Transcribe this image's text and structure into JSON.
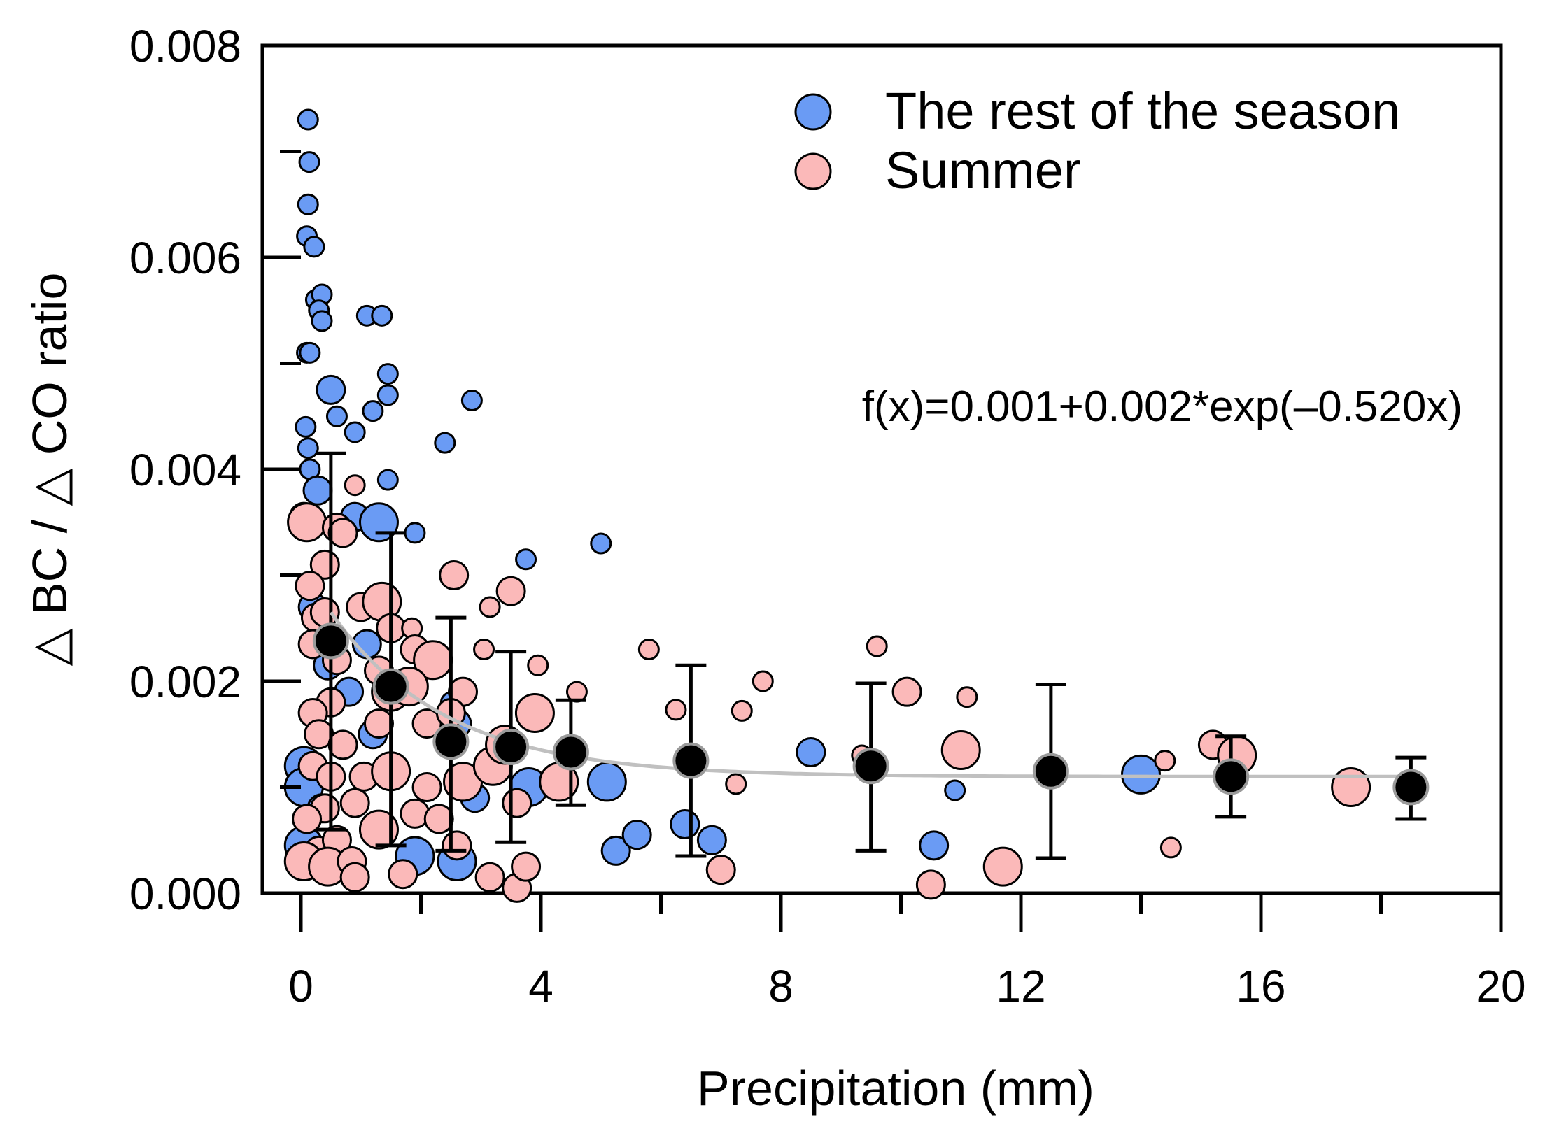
{
  "chart_data": {
    "type": "scatter",
    "xlabel": "Precipitation (mm)",
    "ylabel": "△ BC / △ CO ratio",
    "xlim": [
      0,
      20
    ],
    "ylim": [
      0,
      0.008
    ],
    "x_ticks": [
      0,
      4,
      8,
      12,
      16,
      20
    ],
    "x_tick_labels": [
      "0",
      "4",
      "8",
      "12",
      "16",
      "20"
    ],
    "y_ticks": [
      0,
      0.002,
      0.004,
      0.006,
      0.008
    ],
    "y_tick_labels": [
      "0.000",
      "0.002",
      "0.004",
      "0.006",
      "0.008"
    ],
    "legend_position": "top-right",
    "legend": [
      {
        "label": "The rest of the season",
        "color": "#6a9bf4"
      },
      {
        "label": "Summer",
        "color": "#fbb9b9"
      }
    ],
    "equation": "f(x)=0.001+0.002*exp(–0.520x)",
    "colors": {
      "rest": "#6a9bf4",
      "summer": "#fbb9b9",
      "mean": "#000000",
      "fit": "#c0c0c0"
    },
    "fit": {
      "a": 0.0011,
      "b": 0.00155,
      "k": 0.52,
      "x_range": [
        0.5,
        18.5
      ]
    },
    "series": [
      {
        "name": "The rest of the season",
        "color": "#6a9bf4",
        "points": [
          {
            "x": 0.12,
            "y": 0.0073,
            "s": 1
          },
          {
            "x": 0.14,
            "y": 0.0069,
            "s": 1
          },
          {
            "x": 0.12,
            "y": 0.0065,
            "s": 1
          },
          {
            "x": 0.1,
            "y": 0.0062,
            "s": 1
          },
          {
            "x": 0.22,
            "y": 0.0061,
            "s": 1
          },
          {
            "x": 0.25,
            "y": 0.0056,
            "s": 1
          },
          {
            "x": 0.35,
            "y": 0.00565,
            "s": 1
          },
          {
            "x": 0.3,
            "y": 0.0055,
            "s": 1
          },
          {
            "x": 0.35,
            "y": 0.0054,
            "s": 1
          },
          {
            "x": 0.1,
            "y": 0.0051,
            "s": 1
          },
          {
            "x": 0.15,
            "y": 0.0051,
            "s": 1
          },
          {
            "x": 1.1,
            "y": 0.00545,
            "s": 1
          },
          {
            "x": 1.35,
            "y": 0.00545,
            "s": 1
          },
          {
            "x": 1.45,
            "y": 0.0049,
            "s": 1
          },
          {
            "x": 1.45,
            "y": 0.0047,
            "s": 1
          },
          {
            "x": 1.2,
            "y": 0.00455,
            "s": 1
          },
          {
            "x": 0.5,
            "y": 0.00475,
            "s": 2
          },
          {
            "x": 0.6,
            "y": 0.0045,
            "s": 1
          },
          {
            "x": 0.9,
            "y": 0.00435,
            "s": 1
          },
          {
            "x": 0.08,
            "y": 0.0044,
            "s": 1
          },
          {
            "x": 0.12,
            "y": 0.0042,
            "s": 1
          },
          {
            "x": 0.15,
            "y": 0.004,
            "s": 1
          },
          {
            "x": 1.45,
            "y": 0.0039,
            "s": 1
          },
          {
            "x": 0.28,
            "y": 0.0038,
            "s": 2
          },
          {
            "x": 0.9,
            "y": 0.00355,
            "s": 2
          },
          {
            "x": 1.3,
            "y": 0.0035,
            "s": 3
          },
          {
            "x": 1.9,
            "y": 0.0034,
            "s": 1
          },
          {
            "x": 2.4,
            "y": 0.00425,
            "s": 1
          },
          {
            "x": 2.85,
            "y": 0.00465,
            "s": 1
          },
          {
            "x": 3.75,
            "y": 0.00315,
            "s": 1
          },
          {
            "x": 5.0,
            "y": 0.0033,
            "s": 1
          },
          {
            "x": 0.2,
            "y": 0.0027,
            "s": 2
          },
          {
            "x": 0.45,
            "y": 0.00215,
            "s": 2
          },
          {
            "x": 1.1,
            "y": 0.00235,
            "s": 2
          },
          {
            "x": 0.8,
            "y": 0.0019,
            "s": 2
          },
          {
            "x": 1.2,
            "y": 0.0015,
            "s": 2
          },
          {
            "x": 0.05,
            "y": 0.0012,
            "s": 3
          },
          {
            "x": 0.05,
            "y": 0.001,
            "s": 3
          },
          {
            "x": 0.35,
            "y": 0.0008,
            "s": 2
          },
          {
            "x": 2.5,
            "y": 0.0018,
            "s": 1
          },
          {
            "x": 2.6,
            "y": 0.0016,
            "s": 2
          },
          {
            "x": 2.9,
            "y": 0.0009,
            "s": 2
          },
          {
            "x": 3.8,
            "y": 0.001,
            "s": 3
          },
          {
            "x": 5.1,
            "y": 0.00105,
            "s": 3
          },
          {
            "x": 5.25,
            "y": 0.0004,
            "s": 2
          },
          {
            "x": 5.6,
            "y": 0.00055,
            "s": 2
          },
          {
            "x": 6.4,
            "y": 0.00065,
            "s": 2
          },
          {
            "x": 6.85,
            "y": 0.0005,
            "s": 2
          },
          {
            "x": 0.05,
            "y": 0.00045,
            "s": 3
          },
          {
            "x": 1.9,
            "y": 0.00035,
            "s": 3
          },
          {
            "x": 2.6,
            "y": 0.0003,
            "s": 3
          },
          {
            "x": 8.5,
            "y": 0.00133,
            "s": 2
          },
          {
            "x": 10.9,
            "y": 0.00097,
            "s": 1
          },
          {
            "x": 10.55,
            "y": 0.00045,
            "s": 2
          },
          {
            "x": 14.0,
            "y": 0.00112,
            "s": 3
          }
        ]
      },
      {
        "name": "Summer",
        "color": "#fbb9b9",
        "points": [
          {
            "x": 0.05,
            "y": 0.00355,
            "s": 2
          },
          {
            "x": 0.1,
            "y": 0.0035,
            "s": 3
          },
          {
            "x": 0.6,
            "y": 0.00345,
            "s": 2
          },
          {
            "x": 0.7,
            "y": 0.0034,
            "s": 2
          },
          {
            "x": 0.9,
            "y": 0.00385,
            "s": 1
          },
          {
            "x": 0.4,
            "y": 0.0031,
            "s": 2
          },
          {
            "x": 0.15,
            "y": 0.0029,
            "s": 2
          },
          {
            "x": 0.25,
            "y": 0.0026,
            "s": 2
          },
          {
            "x": 0.4,
            "y": 0.00265,
            "s": 2
          },
          {
            "x": 1.0,
            "y": 0.0027,
            "s": 2
          },
          {
            "x": 1.35,
            "y": 0.00275,
            "s": 3
          },
          {
            "x": 1.5,
            "y": 0.0025,
            "s": 2
          },
          {
            "x": 1.85,
            "y": 0.0025,
            "s": 1
          },
          {
            "x": 0.2,
            "y": 0.00235,
            "s": 2
          },
          {
            "x": 0.6,
            "y": 0.0022,
            "s": 2
          },
          {
            "x": 1.3,
            "y": 0.0021,
            "s": 2
          },
          {
            "x": 1.9,
            "y": 0.0023,
            "s": 2
          },
          {
            "x": 2.2,
            "y": 0.0022,
            "s": 3
          },
          {
            "x": 1.5,
            "y": 0.0019,
            "s": 3
          },
          {
            "x": 1.8,
            "y": 0.00195,
            "s": 3
          },
          {
            "x": 0.5,
            "y": 0.0018,
            "s": 2
          },
          {
            "x": 0.2,
            "y": 0.0017,
            "s": 2
          },
          {
            "x": 1.3,
            "y": 0.0016,
            "s": 2
          },
          {
            "x": 2.1,
            "y": 0.0016,
            "s": 2
          },
          {
            "x": 2.7,
            "y": 0.0019,
            "s": 2
          },
          {
            "x": 2.5,
            "y": 0.0017,
            "s": 2
          },
          {
            "x": 3.05,
            "y": 0.0023,
            "s": 1
          },
          {
            "x": 3.15,
            "y": 0.0027,
            "s": 1
          },
          {
            "x": 2.55,
            "y": 0.003,
            "s": 2
          },
          {
            "x": 3.5,
            "y": 0.00285,
            "s": 2
          },
          {
            "x": 3.95,
            "y": 0.00215,
            "s": 1
          },
          {
            "x": 3.9,
            "y": 0.0017,
            "s": 3
          },
          {
            "x": 4.6,
            "y": 0.0019,
            "s": 1
          },
          {
            "x": 0.3,
            "y": 0.0015,
            "s": 2
          },
          {
            "x": 0.7,
            "y": 0.0014,
            "s": 2
          },
          {
            "x": 0.2,
            "y": 0.0012,
            "s": 2
          },
          {
            "x": 0.5,
            "y": 0.0011,
            "s": 2
          },
          {
            "x": 1.05,
            "y": 0.0011,
            "s": 2
          },
          {
            "x": 1.5,
            "y": 0.00115,
            "s": 3
          },
          {
            "x": 2.1,
            "y": 0.001,
            "s": 2
          },
          {
            "x": 2.7,
            "y": 0.00105,
            "s": 3
          },
          {
            "x": 3.2,
            "y": 0.0012,
            "s": 3
          },
          {
            "x": 3.4,
            "y": 0.0014,
            "s": 3
          },
          {
            "x": 4.3,
            "y": 0.00105,
            "s": 3
          },
          {
            "x": 3.6,
            "y": 0.00085,
            "s": 2
          },
          {
            "x": 0.4,
            "y": 0.0008,
            "s": 2
          },
          {
            "x": 0.9,
            "y": 0.00085,
            "s": 2
          },
          {
            "x": 1.3,
            "y": 0.0006,
            "s": 3
          },
          {
            "x": 1.9,
            "y": 0.00075,
            "s": 2
          },
          {
            "x": 2.3,
            "y": 0.0007,
            "s": 2
          },
          {
            "x": 0.1,
            "y": 0.0007,
            "s": 2
          },
          {
            "x": 0.3,
            "y": 0.0004,
            "s": 2
          },
          {
            "x": 0.6,
            "y": 0.0005,
            "s": 2
          },
          {
            "x": 0.05,
            "y": 0.0003,
            "s": 3
          },
          {
            "x": 0.45,
            "y": 0.00025,
            "s": 3
          },
          {
            "x": 0.85,
            "y": 0.0003,
            "s": 2
          },
          {
            "x": 0.9,
            "y": 0.00015,
            "s": 2
          },
          {
            "x": 1.7,
            "y": 0.00018,
            "s": 2
          },
          {
            "x": 2.6,
            "y": 0.00045,
            "s": 2
          },
          {
            "x": 3.15,
            "y": 0.00015,
            "s": 2
          },
          {
            "x": 3.6,
            "y": 5e-05,
            "s": 2
          },
          {
            "x": 3.75,
            "y": 0.00025,
            "s": 2
          },
          {
            "x": 5.8,
            "y": 0.0023,
            "s": 1
          },
          {
            "x": 6.25,
            "y": 0.00173,
            "s": 1
          },
          {
            "x": 7.35,
            "y": 0.00172,
            "s": 1
          },
          {
            "x": 7.7,
            "y": 0.002,
            "s": 1
          },
          {
            "x": 7.25,
            "y": 0.00103,
            "s": 1
          },
          {
            "x": 7.0,
            "y": 0.00022,
            "s": 2
          },
          {
            "x": 9.35,
            "y": 0.0013,
            "s": 1
          },
          {
            "x": 9.6,
            "y": 0.00233,
            "s": 1
          },
          {
            "x": 10.1,
            "y": 0.0019,
            "s": 2
          },
          {
            "x": 10.5,
            "y": 8e-05,
            "s": 2
          },
          {
            "x": 11.0,
            "y": 0.00135,
            "s": 3
          },
          {
            "x": 11.1,
            "y": 0.00185,
            "s": 1
          },
          {
            "x": 11.7,
            "y": 0.00025,
            "s": 3
          },
          {
            "x": 14.4,
            "y": 0.00125,
            "s": 1
          },
          {
            "x": 14.5,
            "y": 0.00043,
            "s": 1
          },
          {
            "x": 15.2,
            "y": 0.0014,
            "s": 2
          },
          {
            "x": 15.6,
            "y": 0.0013,
            "s": 3
          },
          {
            "x": 17.5,
            "y": 0.001,
            "s": 3
          }
        ]
      },
      {
        "name": "Binned mean",
        "color": "#000000",
        "points": [
          {
            "x": 0.5,
            "y": 0.00238,
            "lo": 0.0006,
            "hi": 0.00415
          },
          {
            "x": 1.5,
            "y": 0.00195,
            "lo": 0.00045,
            "hi": 0.0034
          },
          {
            "x": 2.5,
            "y": 0.00143,
            "lo": 0.0004,
            "hi": 0.0026
          },
          {
            "x": 3.5,
            "y": 0.00138,
            "lo": 0.00048,
            "hi": 0.00228
          },
          {
            "x": 4.5,
            "y": 0.00133,
            "lo": 0.00083,
            "hi": 0.00182
          },
          {
            "x": 6.5,
            "y": 0.00125,
            "lo": 0.00035,
            "hi": 0.00215
          },
          {
            "x": 9.5,
            "y": 0.0012,
            "lo": 0.0004,
            "hi": 0.00198
          },
          {
            "x": 12.5,
            "y": 0.00115,
            "lo": 0.00033,
            "hi": 0.00197
          },
          {
            "x": 15.5,
            "y": 0.0011,
            "lo": 0.00072,
            "hi": 0.00148
          },
          {
            "x": 18.5,
            "y": 0.001,
            "lo": 0.0007,
            "hi": 0.00128
          }
        ]
      }
    ]
  }
}
